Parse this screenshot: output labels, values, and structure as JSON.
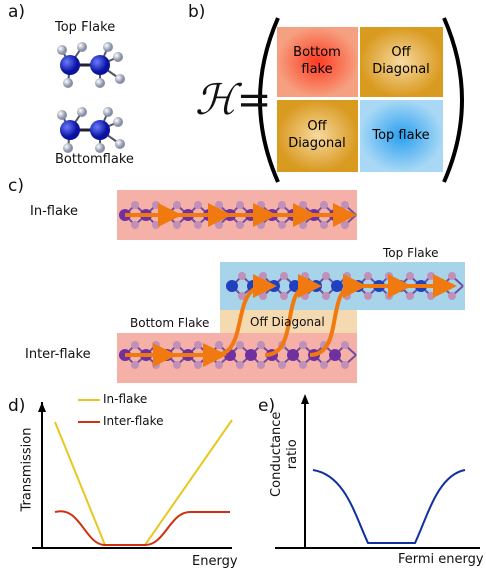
{
  "panels": {
    "a": {
      "label": "a)",
      "top_label": "Top Flake",
      "bottom_label": "Bottomflake"
    },
    "b": {
      "label": "b)",
      "symbol": "ℋ=",
      "matrix": [
        [
          "Bottom flake",
          "Off Diagonal"
        ],
        [
          "Off Diagonal",
          "Top flake"
        ]
      ]
    },
    "c": {
      "label": "c)",
      "in_flake": "In-flake",
      "top_flake": "Top Flake",
      "bottom_flake": "Bottom Flake",
      "off_diagonal": "Off Diagonal",
      "inter_flake": "Inter-flake"
    },
    "d": {
      "label": "d)",
      "legend": [
        "In-flake",
        "Inter-flake"
      ],
      "y_label": "Transmission",
      "x_label": "Energy"
    },
    "e": {
      "label": "e)",
      "y_label": "Conductance ratio",
      "x_label": "Fermi energy"
    }
  }
}
